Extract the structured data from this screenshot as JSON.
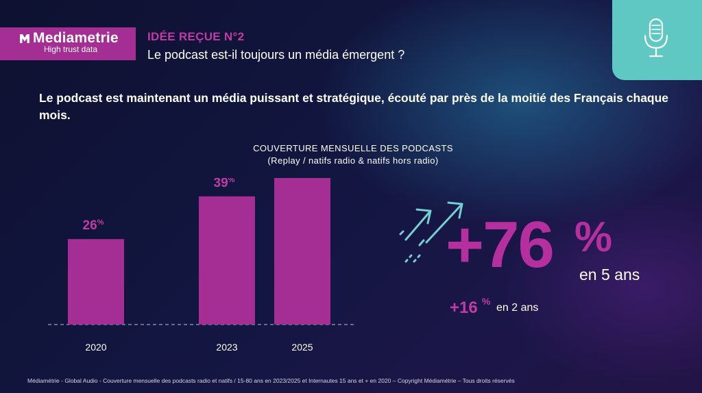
{
  "brand": {
    "name": "Mediametrie",
    "tagline": "High trust data"
  },
  "header": {
    "label": "IDÉE REÇUE N°2",
    "question": "Le podcast est-il toujours un média émergent ?"
  },
  "statement": "Le podcast est maintenant un média puissant et stratégique, écouté par près de la moitié des Français chaque mois.",
  "chart_data": {
    "type": "bar",
    "title": "COUVERTURE MENSUELLE DES PODCASTS",
    "subtitle": "(Replay / natifs radio & natifs hors radio)",
    "categories": [
      "2020",
      "2023",
      "2025"
    ],
    "values": [
      26,
      39,
      46
    ],
    "value_unit": "%",
    "ylim": [
      0,
      50
    ],
    "grid": false,
    "bar_color": "#a42e93"
  },
  "highlight": {
    "value": "+76",
    "unit": "%",
    "period": "en 5 ans",
    "secondary_value": "+16",
    "secondary_unit": "%",
    "secondary_period": "en 2 ans"
  },
  "colors": {
    "accent": "#a42e93",
    "teal": "#5fc8c3",
    "arrows": "#74cfd2"
  },
  "icons": {
    "header": "microphone-icon",
    "trend": "trend-arrows-icon"
  },
  "footer": "Médiamétrie - Global Audio - Couverture mensuelle des podcasts radio et natifs / 15-80 ans en 2023/2025 et Internautes 15 ans et + en 2020 – Copyright Médiamétrie – Tous droits réservés"
}
